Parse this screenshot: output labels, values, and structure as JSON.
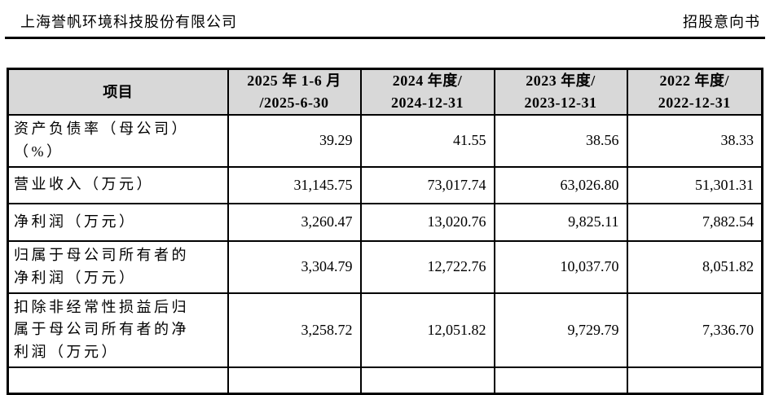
{
  "page_header": {
    "company": "上海誉帆环境科技股份有限公司",
    "doc_type": "招股意向书"
  },
  "table": {
    "header_bg": "#d8d8d8",
    "border_color": "#000000",
    "columns": [
      "项目",
      "2025 年 1-6 月\n/2025-6-30",
      "2024 年度/\n2024-12-31",
      "2023 年度/\n2023-12-31",
      "2022 年度/\n2022-12-31"
    ],
    "rows": [
      {
        "label": "资产负债率（母公司）\n（%）",
        "values": [
          "39.29",
          "41.55",
          "38.56",
          "38.33"
        ]
      },
      {
        "label": "营业收入（万元）",
        "values": [
          "31,145.75",
          "73,017.74",
          "63,026.80",
          "51,301.31"
        ]
      },
      {
        "label": "净利润（万元）",
        "values": [
          "3,260.47",
          "13,020.76",
          "9,825.11",
          "7,882.54"
        ]
      },
      {
        "label": "归属于母公司所有者的\n净利润（万元）",
        "values": [
          "3,304.79",
          "12,722.76",
          "10,037.70",
          "8,051.82"
        ]
      },
      {
        "label": "扣除非经常性损益后归\n属于母公司所有者的净\n利润（万元）",
        "values": [
          "3,258.72",
          "12,051.82",
          "9,729.79",
          "7,336.70"
        ]
      }
    ]
  }
}
